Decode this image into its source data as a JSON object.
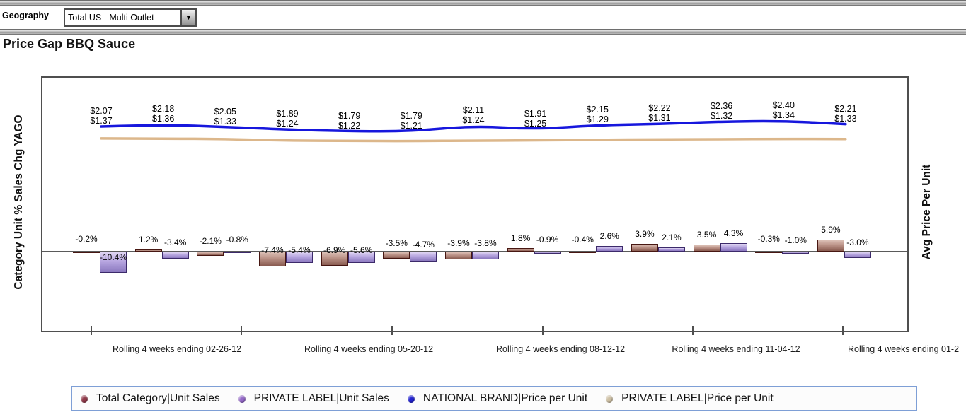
{
  "header": {
    "geography_label": "Geography",
    "geography_value": "Total US - Multi Outlet"
  },
  "icons": {
    "dropdown_arrow": "▼"
  },
  "title": "Price Gap BBQ Sauce",
  "chart_data": {
    "type": "combo-bar-line",
    "title": "Price Gap BBQ Sauce",
    "left_axis_label": "Category Unit % Sales Chg YAGO",
    "right_axis_label": "Avg Price Per Unit",
    "x_tick_labels": [
      "Rolling 4 weeks ending 02-26-12",
      "Rolling 4 weeks ending 05-20-12",
      "Rolling 4 weeks ending 08-12-12",
      "Rolling 4 weeks ending 11-04-12",
      "Rolling 4 weeks ending 01-2"
    ],
    "num_periods": 13,
    "bar_series": [
      {
        "name": "Total Category|Unit Sales",
        "unit": "%",
        "fill_light": "#dcc0b6",
        "fill_dark": "#8a5c51",
        "border": "#471712",
        "values": [
          -0.2,
          1.2,
          -2.1,
          -7.4,
          -6.9,
          -3.5,
          -3.9,
          1.8,
          -0.4,
          3.9,
          3.5,
          -0.3,
          5.9
        ]
      },
      {
        "name": "PRIVATE LABEL|Unit Sales",
        "unit": "%",
        "fill_light": "#e0d6f3",
        "fill_dark": "#8b78bf",
        "border": "#3c2a6a",
        "values": [
          -10.4,
          -3.4,
          -0.8,
          -5.4,
          -5.6,
          -4.7,
          -3.8,
          -0.9,
          2.6,
          2.1,
          4.3,
          -1.0,
          -3.0
        ]
      }
    ],
    "line_series": [
      {
        "name": "NATIONAL BRAND|Price per Unit",
        "unit": "$",
        "color": "#1717dd",
        "values": [
          2.07,
          2.18,
          2.05,
          1.89,
          1.79,
          1.79,
          2.11,
          1.91,
          2.15,
          2.22,
          2.36,
          2.4,
          2.21
        ]
      },
      {
        "name": "PRIVATE LABEL|Price per Unit",
        "unit": "$",
        "color": "#dcb78b",
        "values": [
          1.37,
          1.36,
          1.33,
          1.24,
          1.22,
          1.21,
          1.24,
          1.25,
          1.29,
          1.31,
          1.32,
          1.34,
          1.33
        ]
      }
    ],
    "legend_position": "bottom"
  },
  "legend": {
    "items": [
      {
        "label": "Total Category|Unit Sales",
        "color": "#8f3848"
      },
      {
        "label": "PRIVATE LABEL|Unit Sales",
        "color": "#9468c8"
      },
      {
        "label": "NATIONAL BRAND|Price per Unit",
        "color": "#2222cf"
      },
      {
        "label": "PRIVATE LABEL|Price per Unit",
        "color": "#cdbfa3"
      }
    ]
  }
}
